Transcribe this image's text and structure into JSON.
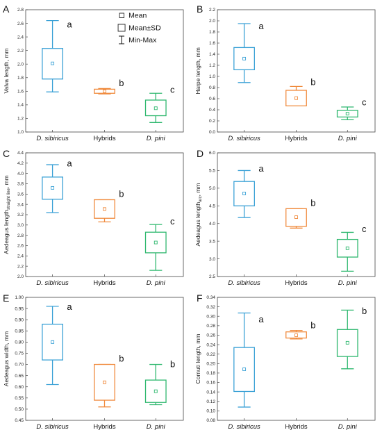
{
  "colors": {
    "D. sibiricus": "#3aa1d6",
    "Hybrids": "#f08a3c",
    "D. pini": "#2fb86f",
    "axis": "#444444"
  },
  "legend": {
    "mean_label": "Mean",
    "sd_label": "Mean±SD",
    "minmax_label": "Min-Max"
  },
  "chart_data": [
    {
      "type": "box",
      "panel_letter": "A",
      "ylabel": "Valva length, mm",
      "ylabel_sub": "",
      "ylabel_post": "",
      "ylim": [
        1.0,
        2.8
      ],
      "yticks": [
        "1.0",
        "1.2",
        "1.4",
        "1.6",
        "1.8",
        "2.0",
        "2.2",
        "2.4",
        "2.6",
        "2.8"
      ],
      "categories": [
        "D. sibiricus",
        "Hybrids",
        "D. pini"
      ],
      "italic": [
        true,
        false,
        true
      ],
      "series": [
        {
          "mean": 2.01,
          "sd_low": 1.78,
          "sd_high": 2.23,
          "min": 1.59,
          "max": 2.64,
          "group": "a"
        },
        {
          "mean": 1.6,
          "sd_low": 1.57,
          "sd_high": 1.63,
          "min": 1.56,
          "max": 1.64,
          "group": "b"
        },
        {
          "mean": 1.35,
          "sd_low": 1.24,
          "sd_high": 1.47,
          "min": 1.14,
          "max": 1.57,
          "group": "c"
        }
      ]
    },
    {
      "type": "box",
      "panel_letter": "B",
      "ylabel": "Harpe length, mm",
      "ylabel_sub": "",
      "ylabel_post": "",
      "ylim": [
        0.0,
        2.2
      ],
      "yticks": [
        "0.0",
        "0.2",
        "0.4",
        "0.6",
        "0.8",
        "1.0",
        "1.2",
        "1.4",
        "1.6",
        "1.8",
        "2.0",
        "2.2"
      ],
      "categories": [
        "D. sibiricus",
        "Hybrids",
        "D. pini"
      ],
      "italic": [
        true,
        false,
        true
      ],
      "series": [
        {
          "mean": 1.32,
          "sd_low": 1.12,
          "sd_high": 1.52,
          "min": 0.89,
          "max": 1.95,
          "group": "a"
        },
        {
          "mean": 0.61,
          "sd_low": 0.47,
          "sd_high": 0.75,
          "min": 0.47,
          "max": 0.82,
          "group": "b"
        },
        {
          "mean": 0.33,
          "sd_low": 0.27,
          "sd_high": 0.39,
          "min": 0.22,
          "max": 0.45,
          "group": "c"
        }
      ]
    },
    {
      "type": "box",
      "panel_letter": "C",
      "ylabel": "Aedeagus length",
      "ylabel_sub": "straight line",
      "ylabel_post": ", mm",
      "ylim": [
        2.0,
        4.4
      ],
      "yticks": [
        "2.0",
        "2.2",
        "2.4",
        "2.6",
        "2.8",
        "3.0",
        "3.2",
        "3.4",
        "3.6",
        "3.8",
        "4.0",
        "4.2",
        "4.4"
      ],
      "categories": [
        "D. sibiricus",
        "Hybrids",
        "D. pini"
      ],
      "italic": [
        true,
        false,
        true
      ],
      "series": [
        {
          "mean": 3.72,
          "sd_low": 3.5,
          "sd_high": 3.93,
          "min": 3.24,
          "max": 4.17,
          "group": "a"
        },
        {
          "mean": 3.31,
          "sd_low": 3.13,
          "sd_high": 3.49,
          "min": 3.06,
          "max": 3.49,
          "group": "b"
        },
        {
          "mean": 2.66,
          "sd_low": 2.46,
          "sd_high": 2.86,
          "min": 2.12,
          "max": 3.01,
          "group": "c"
        }
      ]
    },
    {
      "type": "box",
      "panel_letter": "D",
      "ylabel": "Aedeagus length",
      "ylabel_sub": "arc",
      "ylabel_post": ", mm",
      "ylim": [
        2.5,
        6.0
      ],
      "yticks": [
        "2.5",
        "3.0",
        "3.5",
        "4.0",
        "4.5",
        "5.0",
        "5.5",
        "6.0"
      ],
      "categories": [
        "D. sibiricus",
        "Hybrids",
        "D. pini"
      ],
      "italic": [
        true,
        false,
        true
      ],
      "series": [
        {
          "mean": 4.85,
          "sd_low": 4.5,
          "sd_high": 5.19,
          "min": 4.17,
          "max": 5.5,
          "group": "a"
        },
        {
          "mean": 4.18,
          "sd_low": 3.92,
          "sd_high": 4.42,
          "min": 3.87,
          "max": 4.42,
          "group": "b"
        },
        {
          "mean": 3.3,
          "sd_low": 3.05,
          "sd_high": 3.55,
          "min": 2.65,
          "max": 3.75,
          "group": "c"
        }
      ]
    },
    {
      "type": "box",
      "panel_letter": "E",
      "ylabel": "Aedeagus width, mm",
      "ylabel_sub": "",
      "ylabel_post": "",
      "ylim": [
        0.45,
        1.0
      ],
      "yticks": [
        "0.45",
        "0.50",
        "0.55",
        "0.60",
        "0.65",
        "0.70",
        "0.75",
        "0.80",
        "0.85",
        "0.90",
        "0.95",
        "1.00"
      ],
      "categories": [
        "D. sibiricus",
        "Hybrids",
        "D. pini"
      ],
      "italic": [
        true,
        false,
        true
      ],
      "series": [
        {
          "mean": 0.8,
          "sd_low": 0.72,
          "sd_high": 0.88,
          "min": 0.61,
          "max": 0.96,
          "group": "a"
        },
        {
          "mean": 0.62,
          "sd_low": 0.54,
          "sd_high": 0.7,
          "min": 0.51,
          "max": 0.7,
          "group": "b"
        },
        {
          "mean": 0.58,
          "sd_low": 0.53,
          "sd_high": 0.63,
          "min": 0.52,
          "max": 0.7,
          "group": "b"
        }
      ]
    },
    {
      "type": "box",
      "panel_letter": "F",
      "ylabel": "Cornuti length, mm",
      "ylabel_sub": "",
      "ylabel_post": "",
      "ylim": [
        0.08,
        0.34
      ],
      "yticks": [
        "0.08",
        "0.10",
        "0.12",
        "0.14",
        "0.16",
        "0.18",
        "0.20",
        "0.22",
        "0.24",
        "0.26",
        "0.28",
        "0.30",
        "0.32",
        "0.34"
      ],
      "categories": [
        "D. sibiricus",
        "Hybrids",
        "D. pini"
      ],
      "italic": [
        true,
        false,
        true
      ],
      "series": [
        {
          "mean": 0.188,
          "sd_low": 0.141,
          "sd_high": 0.234,
          "min": 0.108,
          "max": 0.307,
          "group": "a"
        },
        {
          "mean": 0.26,
          "sd_low": 0.254,
          "sd_high": 0.267,
          "min": 0.252,
          "max": 0.27,
          "group": "b"
        },
        {
          "mean": 0.244,
          "sd_low": 0.215,
          "sd_high": 0.272,
          "min": 0.189,
          "max": 0.313,
          "group": "b"
        }
      ]
    }
  ]
}
